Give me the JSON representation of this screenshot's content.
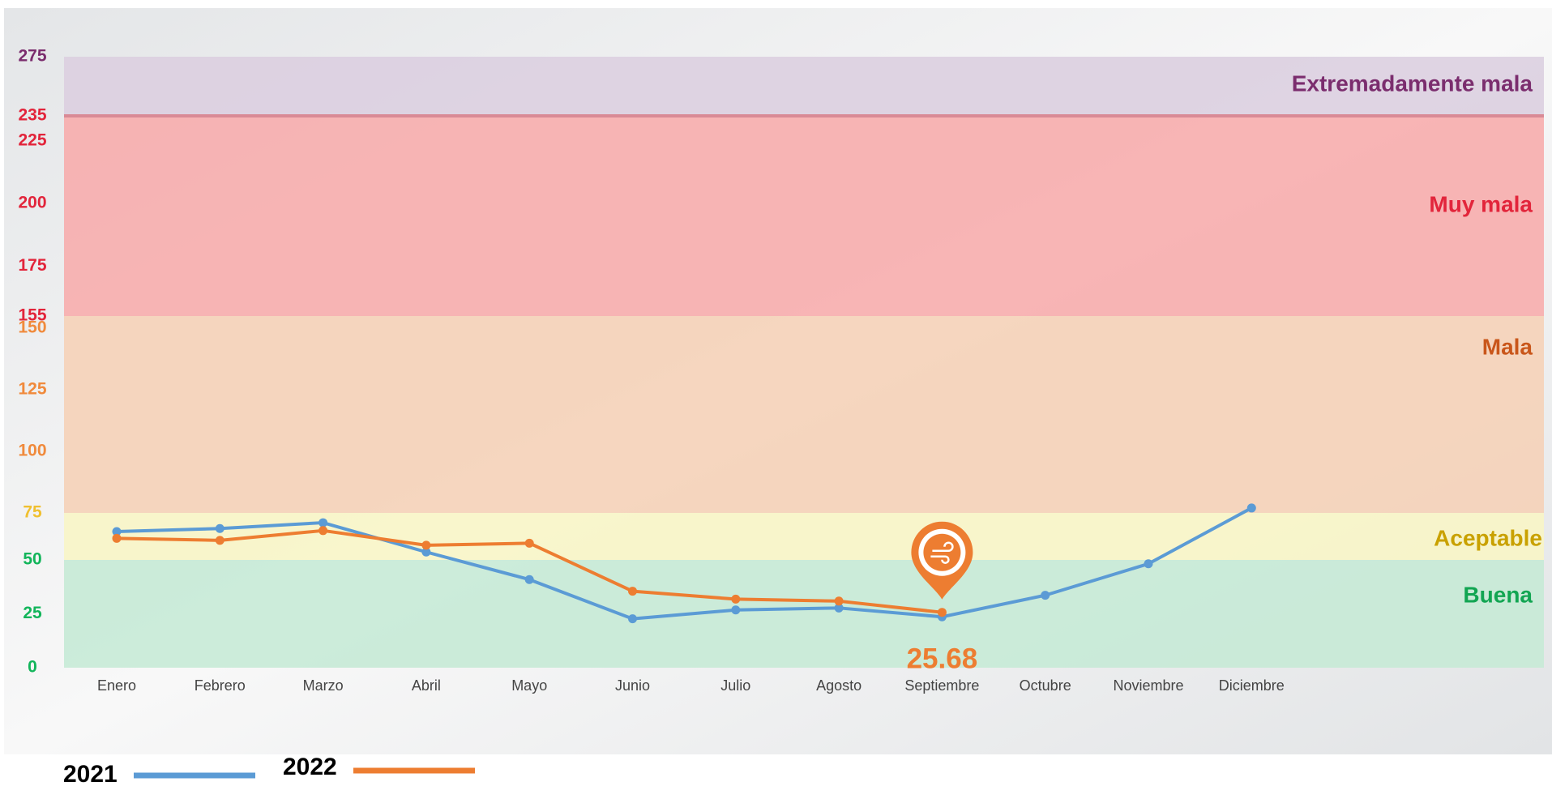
{
  "chart_data": {
    "type": "line",
    "categories": [
      "Enero",
      "Febrero",
      "Marzo",
      "Abril",
      "Mayo",
      "Junio",
      "Julio",
      "Agosto",
      "Septiembre",
      "Octubre",
      "Noviembre",
      "Diciembre"
    ],
    "series": [
      {
        "name": "2021",
        "color": "#5b9bd5",
        "values": [
          65.1,
          66.7,
          69.8,
          54.2,
          40.9,
          22.7,
          26.8,
          27.7,
          23.6,
          33.6,
          48.2,
          77
        ]
      },
      {
        "name": "2022",
        "color": "#ed7d31",
        "values": [
          61.5,
          60.4,
          65.6,
          57.8,
          58.9,
          35.5,
          31.8,
          30.9,
          25.68,
          null,
          null,
          null
        ],
        "value_labels": [
          null,
          null,
          null,
          null,
          null,
          null,
          null,
          null,
          "25.68",
          null,
          null,
          null
        ]
      }
    ],
    "bands": [
      {
        "name": "Buena",
        "range": [
          0,
          50
        ],
        "color": "#c6ead6",
        "label_color": "#12a552"
      },
      {
        "name": "Aceptable",
        "range": [
          50,
          75
        ],
        "color": "#f8f5c6",
        "label_color": "#c9a100"
      },
      {
        "name": "Mala",
        "range": [
          75,
          155
        ],
        "color": "#f5d2b8",
        "label_color": "#c9561a"
      },
      {
        "name": "Muy mala",
        "range": [
          155,
          235
        ],
        "color": "#f7adad",
        "label_color": "#e2253b"
      },
      {
        "name": "Extremadamente mala",
        "range": [
          235,
          275
        ],
        "color": "#dccfe0",
        "label_color": "#7b2d6e"
      }
    ],
    "ylim": [
      0,
      275
    ],
    "yticks": [
      0,
      25,
      50,
      75,
      100,
      125,
      150,
      155,
      175,
      200,
      225,
      235,
      275
    ],
    "ytick_colors": [
      "#12b55a",
      "#12b55a",
      "#12b55a",
      "#f0c030",
      "#f08a3c",
      "#f08a3c",
      "#f08a3c",
      "#e2253b",
      "#e2253b",
      "#e2253b",
      "#e2253b",
      "#e2253b",
      "#7b2d6e"
    ]
  }
}
